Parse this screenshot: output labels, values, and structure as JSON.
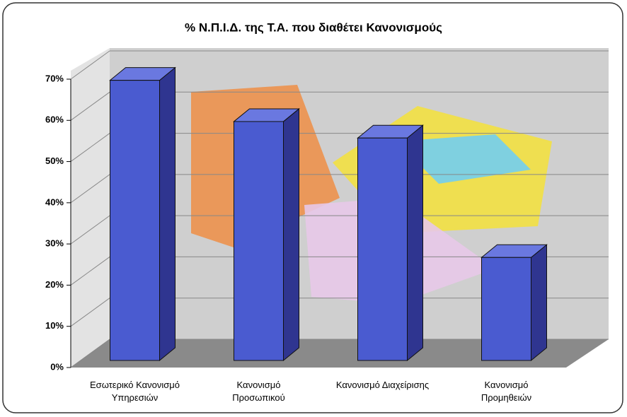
{
  "chart_data": {
    "type": "bar3d",
    "title": "% Ν.Π.Ι.Δ. της Τ.Α. που διαθέτει Κανονισμούς",
    "categories": [
      "Εσωτερικό Κανονισμό\nΥπηρεσιών",
      "Κανονισμό\nΠροσωπικού",
      "Κανονισμό Διαχείρισης",
      "Κανονισμό\nΠρομηθειών"
    ],
    "values": [
      68,
      58,
      54,
      25
    ],
    "color": "#4a5bd0",
    "ylim": [
      0,
      70
    ],
    "yticks": [
      {
        "value": 0,
        "label": "0%"
      },
      {
        "value": 10,
        "label": "10%"
      },
      {
        "value": 20,
        "label": "20%"
      },
      {
        "value": 30,
        "label": "30%"
      },
      {
        "value": 40,
        "label": "40%"
      },
      {
        "value": 50,
        "label": "50%"
      },
      {
        "value": 60,
        "label": "60%"
      },
      {
        "value": 70,
        "label": "70%"
      }
    ],
    "grid": true
  }
}
